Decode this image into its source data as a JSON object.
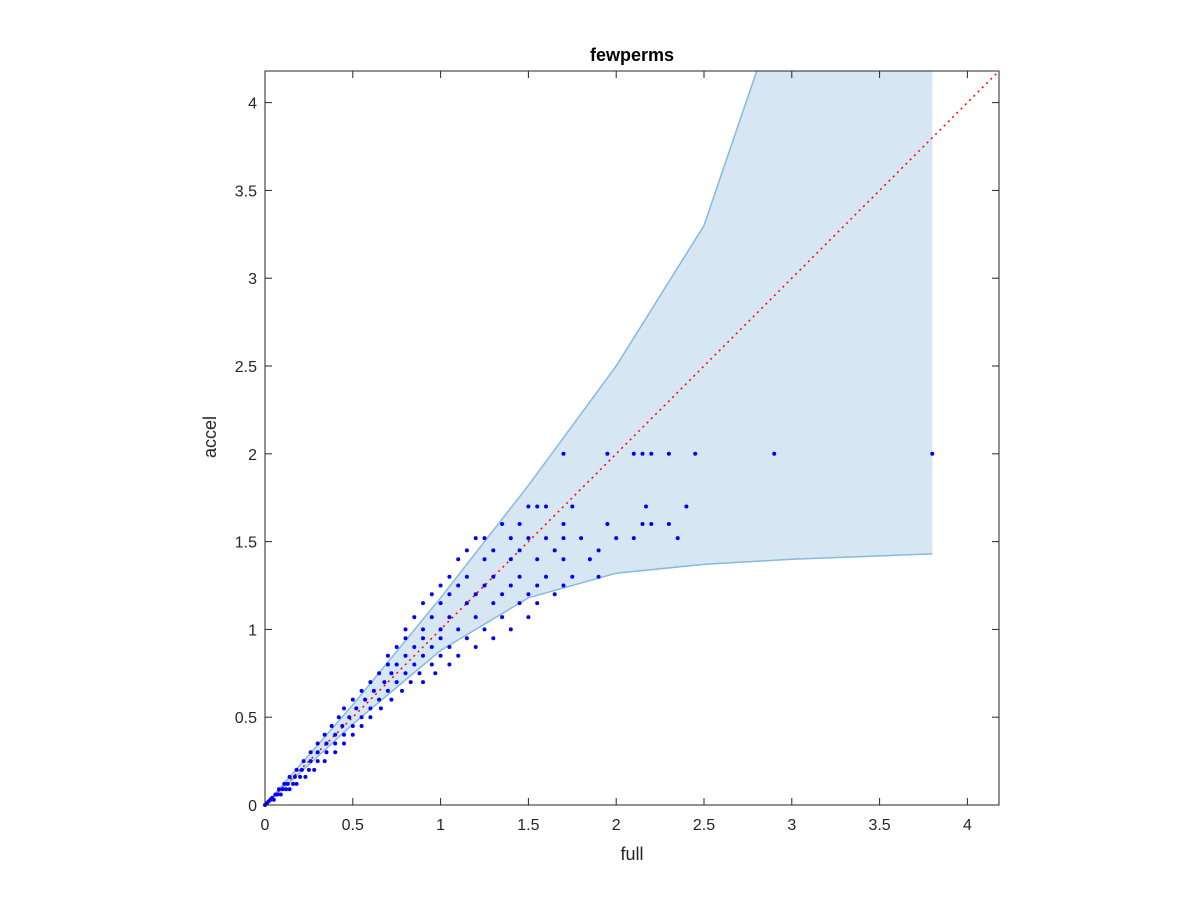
{
  "chart_data": {
    "type": "scatter",
    "title": "fewperms",
    "xlabel": "full",
    "ylabel": "accel",
    "xlim": [
      0,
      4.18
    ],
    "ylim": [
      0,
      4.18
    ],
    "xticks": [
      0,
      0.5,
      1,
      1.5,
      2,
      2.5,
      3,
      3.5,
      4
    ],
    "xtick_labels": [
      "0",
      "0.5",
      "1",
      "1.5",
      "2",
      "2.5",
      "3",
      "3.5",
      "4"
    ],
    "yticks": [
      0,
      0.5,
      1,
      1.5,
      2,
      2.5,
      3,
      3.5,
      4
    ],
    "ytick_labels": [
      "0",
      "0.5",
      "1",
      "1.5",
      "2",
      "2.5",
      "3",
      "3.5",
      "4"
    ],
    "grid": false,
    "colors": {
      "points": "#0000ff",
      "band_fill": "#d6e6f3",
      "band_edge": "#86bbdc",
      "diagonal": "#ff0000",
      "axes": "#262626"
    },
    "band": {
      "upper": [
        [
          0,
          0
        ],
        [
          0.5,
          0.57
        ],
        [
          1,
          1.18
        ],
        [
          1.5,
          1.82
        ],
        [
          2,
          2.5
        ],
        [
          2.5,
          3.3
        ],
        [
          2.8,
          4.18
        ],
        [
          3.8,
          4.18
        ]
      ],
      "lower": [
        [
          0,
          0
        ],
        [
          0.5,
          0.46
        ],
        [
          1,
          0.88
        ],
        [
          1.5,
          1.18
        ],
        [
          2,
          1.32
        ],
        [
          2.5,
          1.37
        ],
        [
          3,
          1.4
        ],
        [
          3.8,
          1.43
        ]
      ]
    },
    "reference_line": {
      "style": "dotted",
      "from": [
        0,
        0
      ],
      "to": [
        4.18,
        4.18
      ]
    },
    "series": [
      {
        "points": [
          [
            1.7,
            2.0
          ],
          [
            1.95,
            2.0
          ],
          [
            2.1,
            2.0
          ],
          [
            2.15,
            2.0
          ],
          [
            2.2,
            2.0
          ],
          [
            2.3,
            2.0
          ],
          [
            2.45,
            2.0
          ],
          [
            2.9,
            2.0
          ],
          [
            3.8,
            2.0
          ],
          [
            1.5,
            1.7
          ],
          [
            1.55,
            1.7
          ],
          [
            1.6,
            1.7
          ],
          [
            1.75,
            1.7
          ],
          [
            2.17,
            1.7
          ],
          [
            2.4,
            1.7
          ],
          [
            1.35,
            1.6
          ],
          [
            1.45,
            1.6
          ],
          [
            1.7,
            1.6
          ],
          [
            1.95,
            1.6
          ],
          [
            2.15,
            1.6
          ],
          [
            2.2,
            1.6
          ],
          [
            2.3,
            1.6
          ],
          [
            1.2,
            1.52
          ],
          [
            1.25,
            1.52
          ],
          [
            1.4,
            1.52
          ],
          [
            1.5,
            1.52
          ],
          [
            1.6,
            1.52
          ],
          [
            1.7,
            1.52
          ],
          [
            1.8,
            1.52
          ],
          [
            2.0,
            1.52
          ],
          [
            2.1,
            1.52
          ],
          [
            2.35,
            1.52
          ],
          [
            1.15,
            1.45
          ],
          [
            1.3,
            1.45
          ],
          [
            1.45,
            1.45
          ],
          [
            1.65,
            1.45
          ],
          [
            1.9,
            1.45
          ],
          [
            1.1,
            1.4
          ],
          [
            1.25,
            1.4
          ],
          [
            1.4,
            1.4
          ],
          [
            1.55,
            1.4
          ],
          [
            1.7,
            1.4
          ],
          [
            1.85,
            1.4
          ],
          [
            1.05,
            1.3
          ],
          [
            1.15,
            1.3
          ],
          [
            1.3,
            1.3
          ],
          [
            1.45,
            1.3
          ],
          [
            1.6,
            1.3
          ],
          [
            1.75,
            1.3
          ],
          [
            1.9,
            1.3
          ],
          [
            1.0,
            1.25
          ],
          [
            1.1,
            1.25
          ],
          [
            1.25,
            1.25
          ],
          [
            1.4,
            1.25
          ],
          [
            1.55,
            1.25
          ],
          [
            1.7,
            1.25
          ],
          [
            0.95,
            1.2
          ],
          [
            1.05,
            1.2
          ],
          [
            1.2,
            1.2
          ],
          [
            1.35,
            1.2
          ],
          [
            1.5,
            1.2
          ],
          [
            1.65,
            1.2
          ],
          [
            0.9,
            1.15
          ],
          [
            1.0,
            1.15
          ],
          [
            1.15,
            1.15
          ],
          [
            1.3,
            1.15
          ],
          [
            1.45,
            1.15
          ],
          [
            1.55,
            1.15
          ],
          [
            0.85,
            1.07
          ],
          [
            0.95,
            1.07
          ],
          [
            1.05,
            1.07
          ],
          [
            1.2,
            1.07
          ],
          [
            1.35,
            1.07
          ],
          [
            1.5,
            1.07
          ],
          [
            0.8,
            1.0
          ],
          [
            0.9,
            1.0
          ],
          [
            1.0,
            1.0
          ],
          [
            1.1,
            1.0
          ],
          [
            1.25,
            1.0
          ],
          [
            1.4,
            1.0
          ],
          [
            0.8,
            0.95
          ],
          [
            0.9,
            0.95
          ],
          [
            1.0,
            0.95
          ],
          [
            1.15,
            0.95
          ],
          [
            1.3,
            0.95
          ],
          [
            0.75,
            0.9
          ],
          [
            0.85,
            0.9
          ],
          [
            0.95,
            0.9
          ],
          [
            1.05,
            0.9
          ],
          [
            1.2,
            0.9
          ],
          [
            0.7,
            0.85
          ],
          [
            0.8,
            0.85
          ],
          [
            0.9,
            0.85
          ],
          [
            1.0,
            0.85
          ],
          [
            1.1,
            0.85
          ],
          [
            0.7,
            0.8
          ],
          [
            0.75,
            0.8
          ],
          [
            0.85,
            0.8
          ],
          [
            0.95,
            0.8
          ],
          [
            1.05,
            0.8
          ],
          [
            0.65,
            0.75
          ],
          [
            0.72,
            0.75
          ],
          [
            0.8,
            0.75
          ],
          [
            0.88,
            0.75
          ],
          [
            0.97,
            0.75
          ],
          [
            0.6,
            0.7
          ],
          [
            0.68,
            0.7
          ],
          [
            0.75,
            0.7
          ],
          [
            0.83,
            0.7
          ],
          [
            0.9,
            0.7
          ],
          [
            0.55,
            0.65
          ],
          [
            0.62,
            0.65
          ],
          [
            0.7,
            0.65
          ],
          [
            0.78,
            0.65
          ],
          [
            0.5,
            0.6
          ],
          [
            0.57,
            0.6
          ],
          [
            0.65,
            0.6
          ],
          [
            0.72,
            0.6
          ],
          [
            0.45,
            0.55
          ],
          [
            0.52,
            0.55
          ],
          [
            0.6,
            0.55
          ],
          [
            0.66,
            0.55
          ],
          [
            0.42,
            0.5
          ],
          [
            0.48,
            0.5
          ],
          [
            0.55,
            0.5
          ],
          [
            0.6,
            0.5
          ],
          [
            0.38,
            0.45
          ],
          [
            0.44,
            0.45
          ],
          [
            0.5,
            0.45
          ],
          [
            0.55,
            0.45
          ],
          [
            0.34,
            0.4
          ],
          [
            0.4,
            0.4
          ],
          [
            0.45,
            0.4
          ],
          [
            0.5,
            0.4
          ],
          [
            0.3,
            0.35
          ],
          [
            0.35,
            0.35
          ],
          [
            0.4,
            0.35
          ],
          [
            0.45,
            0.35
          ],
          [
            0.26,
            0.3
          ],
          [
            0.3,
            0.3
          ],
          [
            0.35,
            0.3
          ],
          [
            0.4,
            0.3
          ],
          [
            0.22,
            0.25
          ],
          [
            0.26,
            0.25
          ],
          [
            0.3,
            0.25
          ],
          [
            0.34,
            0.25
          ],
          [
            0.18,
            0.2
          ],
          [
            0.21,
            0.2
          ],
          [
            0.25,
            0.2
          ],
          [
            0.28,
            0.2
          ],
          [
            0.14,
            0.16
          ],
          [
            0.17,
            0.16
          ],
          [
            0.2,
            0.16
          ],
          [
            0.23,
            0.16
          ],
          [
            0.11,
            0.12
          ],
          [
            0.13,
            0.12
          ],
          [
            0.16,
            0.12
          ],
          [
            0.18,
            0.12
          ],
          [
            0.08,
            0.09
          ],
          [
            0.1,
            0.09
          ],
          [
            0.12,
            0.09
          ],
          [
            0.14,
            0.09
          ],
          [
            0.06,
            0.06
          ],
          [
            0.07,
            0.06
          ],
          [
            0.09,
            0.06
          ],
          [
            0.03,
            0.03
          ],
          [
            0.04,
            0.04
          ],
          [
            0.05,
            0.03
          ],
          [
            0.02,
            0.02
          ],
          [
            0.01,
            0.01
          ],
          [
            0.0,
            0.0
          ]
        ]
      }
    ]
  }
}
